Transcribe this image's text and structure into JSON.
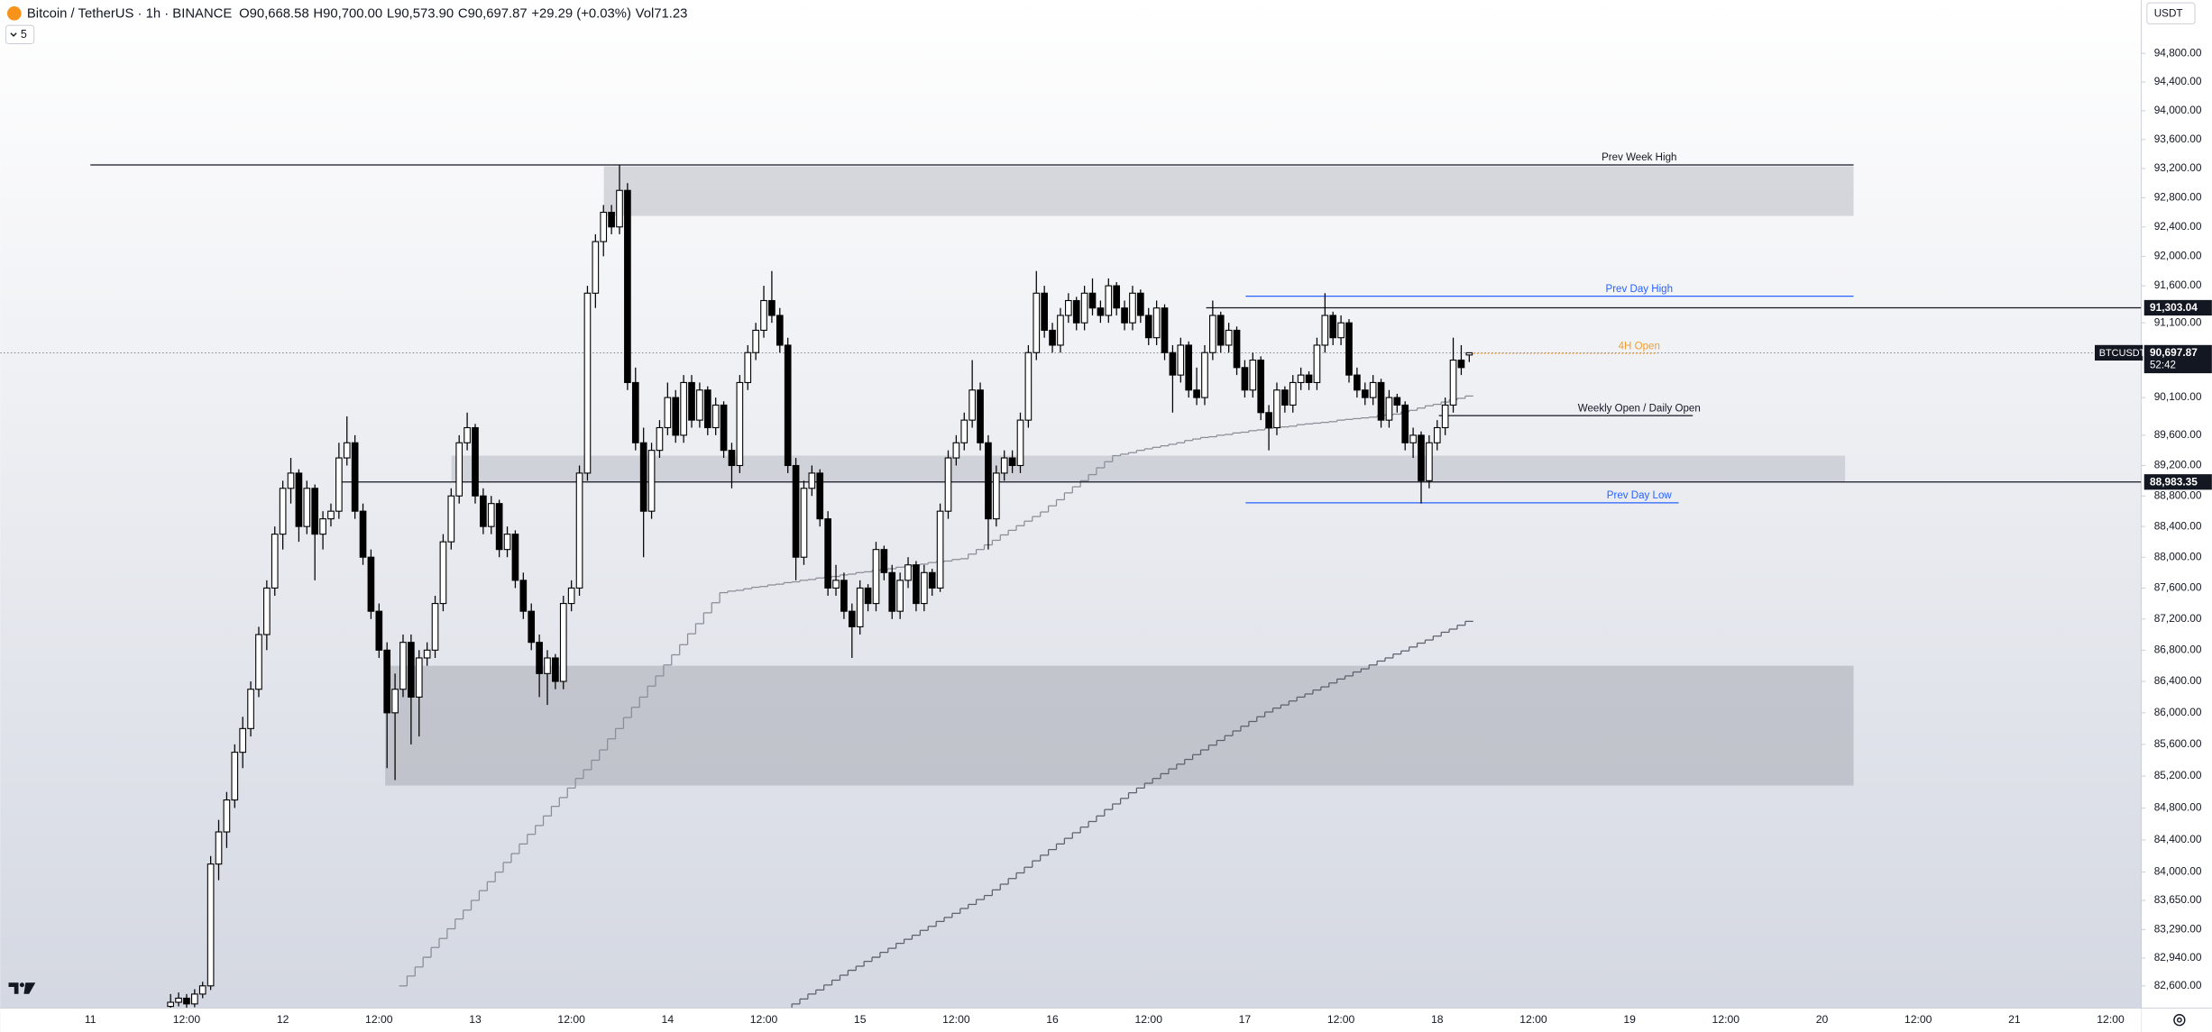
{
  "chart_data": {
    "type": "candlestick",
    "legend": {
      "symbol": "Bitcoin / TetherUS · 1h · BINANCE",
      "fields": [
        {
          "key": "O",
          "value": "90,668.58"
        },
        {
          "key": "H",
          "value": "90,700.00"
        },
        {
          "key": "L",
          "value": "90,573.90"
        },
        {
          "key": "C",
          "value": "90,697.87"
        }
      ],
      "change": "+29.29 (+0.03%)",
      "volume_key": "Vol",
      "volume": "71.23"
    },
    "indicator_count": "5",
    "currency": "USDT",
    "log_scale": true,
    "ylim": [
      82330,
      95550
    ],
    "yticks": [
      {
        "value": 94800,
        "label": "94,800.00"
      },
      {
        "value": 94400,
        "label": "94,400.00"
      },
      {
        "value": 94000,
        "label": "94,000.00"
      },
      {
        "value": 93600,
        "label": "93,600.00"
      },
      {
        "value": 93200,
        "label": "93,200.00"
      },
      {
        "value": 92800,
        "label": "92,800.00"
      },
      {
        "value": 92400,
        "label": "92,400.00"
      },
      {
        "value": 92000,
        "label": "92,000.00"
      },
      {
        "value": 91600,
        "label": "91,600.00"
      },
      {
        "value": 91100,
        "label": "91,100.00"
      },
      {
        "value": 90100,
        "label": "90,100.00"
      },
      {
        "value": 89600,
        "label": "89,600.00"
      },
      {
        "value": 89200,
        "label": "89,200.00"
      },
      {
        "value": 88800,
        "label": "88,800.00"
      },
      {
        "value": 88400,
        "label": "88,400.00"
      },
      {
        "value": 88000,
        "label": "88,000.00"
      },
      {
        "value": 87600,
        "label": "87,600.00"
      },
      {
        "value": 87200,
        "label": "87,200.00"
      },
      {
        "value": 86800,
        "label": "86,800.00"
      },
      {
        "value": 86400,
        "label": "86,400.00"
      },
      {
        "value": 86000,
        "label": "86,000.00"
      },
      {
        "value": 85600,
        "label": "85,600.00"
      },
      {
        "value": 85200,
        "label": "85,200.00"
      },
      {
        "value": 84800,
        "label": "84,800.00"
      },
      {
        "value": 84400,
        "label": "84,400.00"
      },
      {
        "value": 84000,
        "label": "84,000.00"
      },
      {
        "value": 83650,
        "label": "83,650.00"
      },
      {
        "value": 83290,
        "label": "83,290.00"
      },
      {
        "value": 82940,
        "label": "82,940.00"
      },
      {
        "value": 82600,
        "label": "82,600.00"
      }
    ],
    "xticks": [
      "11",
      "12:00",
      "12",
      "12:00",
      "13",
      "12:00",
      "14",
      "12:00",
      "15",
      "12:00",
      "16",
      "12:00",
      "17",
      "12:00",
      "18",
      "12:00",
      "19",
      "12:00",
      "20",
      "12:00",
      "21",
      "12:00"
    ],
    "up_color": "#ffffff",
    "down_color": "#000000",
    "candles": {
      "open": [
        82350,
        82400,
        82450,
        82380,
        82500,
        82600,
        84100,
        84500,
        84900,
        85500,
        85800,
        86300,
        87000,
        87600,
        88300,
        88900,
        89100,
        88400,
        88900,
        88300,
        88500,
        88600,
        89300,
        89500,
        88600,
        88000,
        87300,
        86800,
        86000,
        86300,
        86900,
        86200,
        86700,
        86800,
        87400,
        88200,
        88800,
        89500,
        89700,
        88800,
        88400,
        88700,
        88100,
        88300,
        87700,
        87300,
        86900,
        86500,
        86700,
        86400,
        87400,
        87600,
        89100,
        91500,
        92200,
        92600,
        92400,
        92900,
        90300,
        89500,
        88600,
        89400,
        89700,
        90100,
        89600,
        90300,
        89800,
        90200,
        89700,
        90000,
        89400,
        89200,
        90300,
        90700,
        91000,
        91400,
        91200,
        90800,
        89200,
        88000,
        88900,
        89100,
        88500,
        87600,
        87700,
        87300,
        87100,
        87600,
        87400,
        88100,
        87800,
        87300,
        87700,
        87900,
        87400,
        87800,
        87600,
        88600,
        89300,
        89500,
        89800,
        90200,
        89500,
        88500,
        89100,
        89300,
        89200,
        89800,
        90700,
        91500,
        91000,
        90800,
        91200,
        91400,
        91100,
        91500,
        91300,
        91200,
        91600,
        91300,
        91100,
        91500,
        91200,
        90900,
        91300,
        90700,
        90400,
        90800,
        90200,
        90100,
        90700,
        91200,
        90800,
        91000,
        90500,
        90200,
        90600,
        89900,
        89700,
        90200,
        90000,
        90300,
        90400,
        90300,
        90800,
        91200,
        90900,
        91100,
        90400,
        90200,
        90100,
        90300,
        89800,
        90100,
        90000,
        89500,
        89600,
        89000,
        89500,
        89700,
        90000,
        90600,
        90668.58
      ],
      "high": [
        82500,
        82520,
        82500,
        82560,
        82650,
        84200,
        84650,
        85000,
        85600,
        85950,
        86400,
        87100,
        87700,
        88400,
        89000,
        89300,
        89150,
        89000,
        88950,
        88600,
        88700,
        89500,
        89850,
        89600,
        88700,
        88100,
        87400,
        86900,
        86500,
        87000,
        87000,
        86800,
        86900,
        87500,
        88300,
        88900,
        89600,
        89900,
        89750,
        88900,
        88800,
        88750,
        88400,
        88350,
        87800,
        87400,
        87000,
        86800,
        86750,
        87500,
        87700,
        89200,
        91600,
        92300,
        92700,
        92700,
        93250,
        93000,
        90500,
        89700,
        89500,
        89800,
        90300,
        90200,
        90400,
        90400,
        90300,
        90250,
        90100,
        90050,
        89500,
        90400,
        90800,
        91100,
        91600,
        91800,
        91300,
        90900,
        89300,
        89000,
        89200,
        89150,
        88600,
        87900,
        87800,
        87400,
        87700,
        87650,
        88200,
        88150,
        87900,
        87800,
        88000,
        87950,
        87900,
        87850,
        88700,
        89400,
        89600,
        89900,
        90600,
        90300,
        89600,
        89200,
        89400,
        89400,
        89900,
        90800,
        91800,
        91600,
        91100,
        91300,
        91500,
        91450,
        91600,
        91700,
        91400,
        91700,
        91650,
        91400,
        91600,
        91550,
        91300,
        91400,
        91350,
        90800,
        90900,
        90850,
        90500,
        90800,
        91400,
        91250,
        91100,
        91050,
        90600,
        90700,
        90650,
        90000,
        90300,
        90250,
        90400,
        90500,
        90450,
        90900,
        91500,
        91250,
        91200,
        91150,
        90500,
        90300,
        90400,
        90350,
        90200,
        90150,
        90050,
        89700,
        89650,
        89600,
        89800,
        90100,
        90900,
        90800,
        90700
      ],
      "low": [
        82300,
        82350,
        82320,
        82340,
        82450,
        82550,
        83900,
        84300,
        84800,
        85300,
        85700,
        86200,
        86800,
        87500,
        88100,
        88700,
        88200,
        88300,
        87700,
        88100,
        88400,
        88500,
        89200,
        88500,
        87900,
        87200,
        86700,
        85300,
        85150,
        86200,
        85600,
        85700,
        86600,
        86700,
        87300,
        88100,
        88700,
        89400,
        88700,
        88300,
        88300,
        88000,
        88000,
        87600,
        87200,
        86800,
        86200,
        86100,
        86300,
        86300,
        87300,
        87500,
        89000,
        91300,
        92000,
        92300,
        92300,
        90200,
        89400,
        88000,
        88500,
        89300,
        89600,
        89500,
        89500,
        89700,
        89700,
        89600,
        89600,
        89300,
        88900,
        89100,
        90200,
        90600,
        90900,
        91100,
        90700,
        89100,
        87700,
        87900,
        88800,
        88400,
        87500,
        87500,
        87200,
        86700,
        87000,
        87300,
        87300,
        87700,
        87200,
        87200,
        87600,
        87300,
        87300,
        87500,
        87550,
        88500,
        89200,
        89400,
        89700,
        89400,
        88100,
        88400,
        89000,
        89100,
        89100,
        89700,
        90600,
        90900,
        90700,
        90700,
        91100,
        91000,
        91000,
        91200,
        91100,
        91100,
        91200,
        91000,
        91000,
        91100,
        90800,
        90800,
        90600,
        89900,
        90300,
        90100,
        90000,
        90000,
        90600,
        90700,
        90700,
        90400,
        90100,
        90100,
        89800,
        89400,
        89600,
        89900,
        89900,
        90200,
        90200,
        90200,
        90700,
        90800,
        90800,
        90300,
        90100,
        90000,
        90000,
        89700,
        89700,
        89900,
        89400,
        89300,
        88700,
        88900,
        89400,
        89600,
        89900,
        90400,
        90573.9
      ],
      "close": [
        82400,
        82450,
        82380,
        82500,
        82600,
        84100,
        84500,
        84900,
        85500,
        85800,
        86300,
        87000,
        87600,
        88300,
        88900,
        89100,
        88400,
        88900,
        88300,
        88500,
        88600,
        89300,
        89500,
        88600,
        88000,
        87300,
        86800,
        86000,
        86300,
        86900,
        86200,
        86700,
        86800,
        87400,
        88200,
        88800,
        89500,
        89700,
        88800,
        88400,
        88700,
        88100,
        88300,
        87700,
        87300,
        86900,
        86500,
        86700,
        86400,
        87400,
        87600,
        89100,
        91500,
        92200,
        92600,
        92400,
        92900,
        90300,
        89500,
        88600,
        89400,
        89700,
        90100,
        89600,
        90300,
        89800,
        90200,
        89700,
        90000,
        89400,
        89200,
        90300,
        90700,
        91000,
        91400,
        91200,
        90800,
        89200,
        88000,
        88900,
        89100,
        88500,
        87600,
        87700,
        87300,
        87100,
        87600,
        87400,
        88100,
        87800,
        87300,
        87700,
        87900,
        87400,
        87800,
        87600,
        88600,
        89300,
        89500,
        89800,
        90200,
        89500,
        88500,
        89100,
        89300,
        89200,
        89800,
        90700,
        91500,
        91000,
        90800,
        91200,
        91400,
        91100,
        91500,
        91300,
        91200,
        91600,
        91300,
        91100,
        91500,
        91200,
        90900,
        91300,
        90700,
        90400,
        90800,
        90200,
        90100,
        90700,
        91200,
        90800,
        91000,
        90500,
        90200,
        90600,
        89900,
        89700,
        90200,
        90000,
        90300,
        90400,
        90300,
        90800,
        91200,
        90900,
        91100,
        90400,
        90200,
        90100,
        90300,
        89800,
        90100,
        90000,
        89500,
        89600,
        89000,
        89500,
        89700,
        90000,
        90600,
        90500,
        90697.87
      ]
    },
    "series": [
      {
        "color": "#8a8d96",
        "values": [
          null,
          null,
          null,
          null,
          null,
          null,
          null,
          null,
          null,
          null,
          null,
          null,
          null,
          null,
          null,
          null,
          null,
          null,
          null,
          null,
          null,
          null,
          null,
          null,
          null,
          null,
          null,
          null,
          null,
          82600,
          82720,
          82830,
          82950,
          83070,
          83180,
          83300,
          83420,
          83530,
          83650,
          83770,
          83880,
          84000,
          84120,
          84230,
          84350,
          84470,
          84580,
          84700,
          84820,
          84930,
          85050,
          85170,
          85280,
          85400,
          85530,
          85670,
          85800,
          85940,
          86070,
          86200,
          86340,
          86470,
          86610,
          86740,
          86870,
          87010,
          87140,
          87280,
          87410,
          87540,
          87560,
          87570,
          87590,
          87610,
          87620,
          87640,
          87650,
          87670,
          87680,
          87700,
          87710,
          87730,
          87740,
          87750,
          87770,
          87780,
          87800,
          87810,
          87830,
          87840,
          87850,
          87870,
          87880,
          87900,
          87910,
          87930,
          87940,
          87950,
          87970,
          87980,
          88040,
          88100,
          88160,
          88220,
          88290,
          88350,
          88410,
          88470,
          88530,
          88590,
          88670,
          88750,
          88840,
          88920,
          89000,
          89080,
          89170,
          89250,
          89330,
          89350,
          89370,
          89400,
          89420,
          89440,
          89460,
          89480,
          89500,
          89530,
          89550,
          89570,
          89580,
          89600,
          89610,
          89630,
          89640,
          89660,
          89670,
          89690,
          89700,
          89710,
          89720,
          89740,
          89750,
          89760,
          89770,
          89780,
          89800,
          89810,
          89820,
          89830,
          89840,
          89860,
          89870,
          89880,
          89910,
          89930,
          89960,
          89990,
          90010,
          90040,
          90070,
          90090,
          90120
        ]
      },
      {
        "color": "#5d606b",
        "values": [
          null,
          null,
          null,
          null,
          null,
          null,
          null,
          null,
          null,
          null,
          null,
          null,
          null,
          null,
          null,
          null,
          null,
          null,
          null,
          null,
          null,
          null,
          null,
          null,
          null,
          null,
          null,
          null,
          null,
          null,
          null,
          null,
          null,
          null,
          null,
          null,
          null,
          null,
          null,
          null,
          null,
          null,
          null,
          null,
          null,
          null,
          null,
          null,
          null,
          null,
          null,
          null,
          null,
          null,
          null,
          null,
          null,
          null,
          null,
          null,
          null,
          null,
          null,
          null,
          null,
          null,
          null,
          null,
          null,
          null,
          null,
          null,
          null,
          null,
          null,
          null,
          null,
          82320,
          82380,
          82440,
          82500,
          82550,
          82610,
          82670,
          82730,
          82790,
          82840,
          82900,
          82950,
          83010,
          83060,
          83120,
          83170,
          83220,
          83280,
          83330,
          83390,
          83440,
          83490,
          83550,
          83600,
          83660,
          83710,
          83780,
          83850,
          83920,
          83990,
          84060,
          84140,
          84210,
          84280,
          84350,
          84420,
          84490,
          84560,
          84630,
          84700,
          84780,
          84850,
          84920,
          84990,
          85050,
          85110,
          85170,
          85230,
          85290,
          85350,
          85410,
          85470,
          85530,
          85590,
          85650,
          85710,
          85770,
          85830,
          85890,
          85950,
          86010,
          86060,
          86100,
          86150,
          86200,
          86240,
          86290,
          86330,
          86380,
          86430,
          86470,
          86520,
          86560,
          86610,
          86660,
          86700,
          86750,
          86790,
          86840,
          86890,
          86930,
          86980,
          87030,
          87070,
          87120,
          87170
        ]
      }
    ],
    "zones": [
      {
        "top": 93230,
        "bottom": 92550,
        "color": "#b9bcc4"
      },
      {
        "top": 89330,
        "bottom": 88990,
        "color": "#b9bcc4"
      },
      {
        "top": 86600,
        "bottom": 85080,
        "color": "#a9acb5"
      }
    ],
    "levels": [
      {
        "label": "Prev Week High",
        "value": 93250,
        "color": "#131722",
        "line_style": "solid"
      },
      {
        "label": "Prev Day High",
        "value": 91460,
        "color": "#2962ff",
        "line_style": "solid"
      },
      {
        "label": "4H Open",
        "value": 90690,
        "color": "#f0a030",
        "line_style": "dotted"
      },
      {
        "label": "Weekly Open / Daily Open",
        "value": 89860,
        "color": "#131722",
        "line_style": "solid"
      },
      {
        "label": "Prev Day Low",
        "value": 88710,
        "color": "#2962ff",
        "line_style": "solid"
      }
    ],
    "price_labels": [
      {
        "value": 91303.04,
        "label": "91,303.04"
      },
      {
        "value": 88983.35,
        "label": "88,983.35"
      }
    ],
    "last_price": {
      "symbol": "BTCUSDT",
      "value": 90697.87,
      "label": "90,697.87",
      "countdown": "52:42"
    }
  }
}
